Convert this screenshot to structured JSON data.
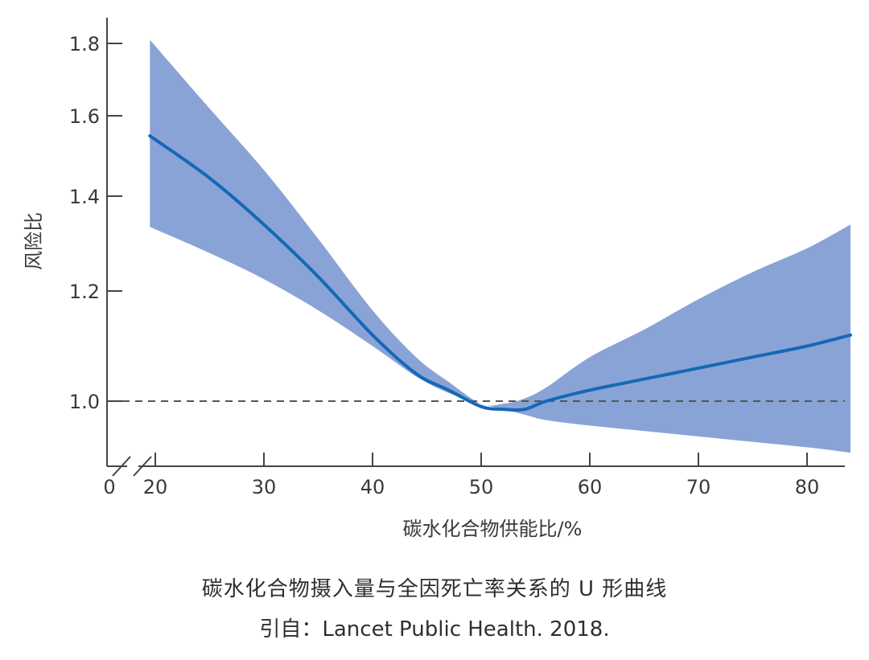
{
  "chart_data": {
    "type": "line",
    "xlabel": "碳水化合物供能比/%",
    "ylabel": "风险比",
    "xlim": [
      19,
      84
    ],
    "ylim": [
      0.88,
      1.84
    ],
    "x_origin_label": "0",
    "axis_break": true,
    "xticks": [
      20,
      30,
      40,
      50,
      60,
      70,
      80
    ],
    "yticks": [
      1.0,
      1.2,
      1.4,
      1.6,
      1.8
    ],
    "ytick_labels": [
      "1.0",
      "1.2",
      "1.4",
      "1.6",
      "1.8"
    ],
    "reference_line": {
      "y": 1.0,
      "style": "dashed"
    },
    "series": [
      {
        "x": [
          19.5,
          25,
          30,
          35,
          40,
          44,
          47,
          50,
          52,
          54,
          56,
          60,
          65,
          70,
          75,
          80,
          84
        ],
        "y": [
          1.55,
          1.445,
          1.34,
          1.23,
          1.12,
          1.05,
          1.02,
          0.99,
          0.985,
          0.985,
          1.0,
          1.02,
          1.04,
          1.06,
          1.08,
          1.1,
          1.12
        ],
        "lower": [
          1.335,
          1.28,
          1.225,
          1.165,
          1.1,
          1.045,
          1.015,
          0.995,
          0.985,
          0.975,
          0.965,
          0.955,
          0.945,
          0.935,
          0.925,
          0.915,
          0.905
        ],
        "upper": [
          1.81,
          1.62,
          1.465,
          1.31,
          1.165,
          1.08,
          1.035,
          0.995,
          0.995,
          1.005,
          1.025,
          1.08,
          1.13,
          1.185,
          1.24,
          1.29,
          1.34
        ]
      }
    ],
    "colors": {
      "line": "#1568b8",
      "band": "#8aa3d6",
      "axis": "#444444",
      "reference": "#555555"
    }
  },
  "caption": {
    "title": "碳水化合物摄入量与全因死亡率关系的 U 形曲线",
    "source": "引自：Lancet Public Health. 2018."
  }
}
